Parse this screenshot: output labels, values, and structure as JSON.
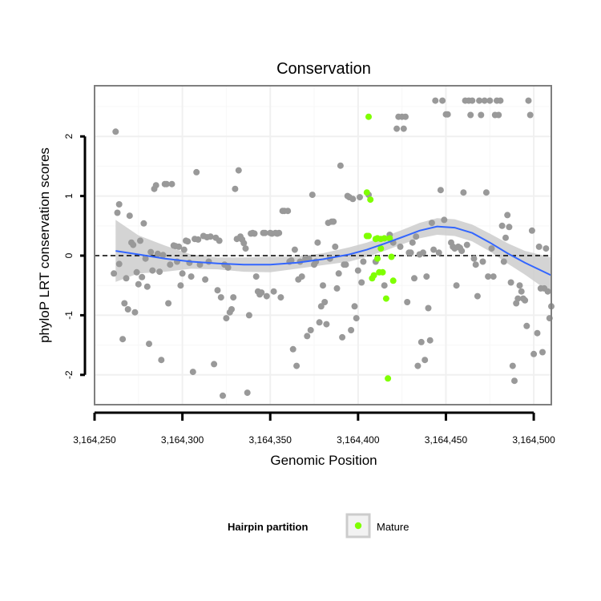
{
  "chart_data": {
    "type": "scatter",
    "title": "Conservation",
    "xlabel": "Genomic Position",
    "ylabel": "phyloP LRT conservation scores",
    "xlim": [
      3164250,
      3164510
    ],
    "ylim": [
      -2.5,
      2.85
    ],
    "xticks": [
      3164250,
      3164300,
      3164350,
      3164400,
      3164450,
      3164500
    ],
    "xtick_labels": [
      "3,164,250",
      "3,164,300",
      "3,164,350",
      "3,164,400",
      "3,164,450",
      "3,164,500"
    ],
    "yticks": [
      -2,
      -1,
      0,
      1,
      2
    ],
    "ytick_labels": [
      "-2",
      "-1",
      "0",
      "1",
      "2"
    ],
    "grid": true,
    "reference_line": {
      "y": 0,
      "style": "dashed"
    },
    "colors": {
      "other": "#999999",
      "mature": "#7fff00",
      "smooth": "#3366ff",
      "band": "#cccccc",
      "panel_border": "#7f7f7f"
    },
    "legend": {
      "title": "Hairpin partition",
      "placement": "bottom",
      "entries": [
        {
          "label": "Mature",
          "color": "#7fff00"
        }
      ]
    },
    "series": [
      {
        "points": [
          [
            3164262,
            2.08
          ],
          [
            3164263,
            0.72
          ],
          [
            3164264,
            0.86
          ],
          [
            3164264,
            -0.14
          ],
          [
            3164261,
            -0.3
          ],
          [
            3164266,
            -1.4
          ],
          [
            3164267,
            -0.8
          ],
          [
            3164268,
            -0.38
          ],
          [
            3164269,
            -0.9
          ],
          [
            3164270,
            0.67
          ],
          [
            3164271,
            0.22
          ],
          [
            3164272,
            0.18
          ],
          [
            3164273,
            -0.95
          ],
          [
            3164274,
            -0.28
          ],
          [
            3164275,
            -0.48
          ],
          [
            3164276,
            0.25
          ],
          [
            3164277,
            -0.36
          ],
          [
            3164278,
            0.54
          ],
          [
            3164279,
            -0.05
          ],
          [
            3164280,
            -0.52
          ],
          [
            3164281,
            -1.48
          ],
          [
            3164282,
            0.06
          ],
          [
            3164283,
            -0.25
          ],
          [
            3164284,
            1.12
          ],
          [
            3164285,
            1.18
          ],
          [
            3164286,
            0.03
          ],
          [
            3164287,
            -0.27
          ],
          [
            3164288,
            -1.75
          ],
          [
            3164289,
            0.01
          ],
          [
            3164290,
            1.2
          ],
          [
            3164291,
            1.2
          ],
          [
            3164292,
            -0.8
          ],
          [
            3164293,
            -0.15
          ],
          [
            3164294,
            1.2
          ],
          [
            3164295,
            0.17
          ],
          [
            3164296,
            0.16
          ],
          [
            3164297,
            -0.1
          ],
          [
            3164298,
            0.15
          ],
          [
            3164299,
            -0.5
          ],
          [
            3164300,
            -0.3
          ],
          [
            3164301,
            0.1
          ],
          [
            3164302,
            0.25
          ],
          [
            3164303,
            0.24
          ],
          [
            3164304,
            -0.12
          ],
          [
            3164305,
            -0.35
          ],
          [
            3164306,
            -1.95
          ],
          [
            3164307,
            0.28
          ],
          [
            3164308,
            1.4
          ],
          [
            3164309,
            0.27
          ],
          [
            3164310,
            -0.15
          ],
          [
            3164312,
            0.33
          ],
          [
            3164313,
            -0.4
          ],
          [
            3164314,
            0.31
          ],
          [
            3164315,
            -0.1
          ],
          [
            3164316,
            0.32
          ],
          [
            3164318,
            -1.82
          ],
          [
            3164319,
            0.3
          ],
          [
            3164320,
            -0.58
          ],
          [
            3164321,
            0.25
          ],
          [
            3164322,
            -0.7
          ],
          [
            3164323,
            -2.35
          ],
          [
            3164324,
            -0.15
          ],
          [
            3164325,
            -1.05
          ],
          [
            3164326,
            -0.2
          ],
          [
            3164327,
            -0.95
          ],
          [
            3164328,
            -0.9
          ],
          [
            3164329,
            -0.7
          ],
          [
            3164330,
            1.12
          ],
          [
            3164331,
            0.28
          ],
          [
            3164332,
            1.43
          ],
          [
            3164333,
            0.32
          ],
          [
            3164334,
            0.27
          ],
          [
            3164335,
            0.21
          ],
          [
            3164336,
            0.12
          ],
          [
            3164337,
            -2.3
          ],
          [
            3164338,
            -1.0
          ],
          [
            3164339,
            0.37
          ],
          [
            3164340,
            0.38
          ],
          [
            3164341,
            0.37
          ],
          [
            3164342,
            -0.35
          ],
          [
            3164343,
            -0.6
          ],
          [
            3164344,
            -0.65
          ],
          [
            3164345,
            -0.62
          ],
          [
            3164346,
            0.38
          ],
          [
            3164347,
            0.38
          ],
          [
            3164348,
            -0.68
          ],
          [
            3164350,
            0.38
          ],
          [
            3164351,
            0.37
          ],
          [
            3164352,
            -0.6
          ],
          [
            3164353,
            0.38
          ],
          [
            3164354,
            0.37
          ],
          [
            3164355,
            0.38
          ],
          [
            3164356,
            -0.7
          ],
          [
            3164357,
            0.75
          ],
          [
            3164358,
            0.75
          ],
          [
            3164360,
            0.75
          ],
          [
            3164361,
            -0.1
          ],
          [
            3164362,
            -0.08
          ],
          [
            3164363,
            -1.57
          ],
          [
            3164364,
            0.1
          ],
          [
            3164365,
            -1.85
          ],
          [
            3164366,
            -0.4
          ],
          [
            3164367,
            -0.1
          ],
          [
            3164368,
            -0.35
          ],
          [
            3164370,
            -0.05
          ],
          [
            3164371,
            -1.35
          ],
          [
            3164372,
            -0.05
          ],
          [
            3164373,
            -1.25
          ],
          [
            3164374,
            1.02
          ],
          [
            3164375,
            -0.15
          ],
          [
            3164376,
            -0.1
          ],
          [
            3164377,
            0.22
          ],
          [
            3164378,
            -1.12
          ],
          [
            3164379,
            -0.85
          ],
          [
            3164380,
            -0.5
          ],
          [
            3164381,
            -0.78
          ],
          [
            3164382,
            -1.15
          ],
          [
            3164383,
            0.55
          ],
          [
            3164384,
            -0.05
          ],
          [
            3164385,
            0.57
          ],
          [
            3164386,
            0.57
          ],
          [
            3164387,
            0.15
          ],
          [
            3164388,
            -0.55
          ],
          [
            3164389,
            -0.3
          ],
          [
            3164390,
            1.51
          ],
          [
            3164391,
            -1.37
          ],
          [
            3164392,
            -0.15
          ],
          [
            3164393,
            -0.15
          ],
          [
            3164394,
            1.0
          ],
          [
            3164395,
            0.98
          ],
          [
            3164396,
            -1.25
          ],
          [
            3164397,
            0.95
          ],
          [
            3164398,
            -0.85
          ],
          [
            3164399,
            -1.05
          ],
          [
            3164400,
            -0.25
          ],
          [
            3164401,
            0.98
          ],
          [
            3164402,
            -0.45
          ],
          [
            3164403,
            -0.1
          ],
          [
            3164406,
            1.02
          ],
          [
            3164410,
            -0.1
          ],
          [
            3164415,
            -0.5
          ],
          [
            3164418,
            0.35
          ],
          [
            3164420,
            0.22
          ],
          [
            3164422,
            2.13
          ],
          [
            3164423,
            2.33
          ],
          [
            3164424,
            0.15
          ],
          [
            3164425,
            2.33
          ],
          [
            3164426,
            2.13
          ],
          [
            3164427,
            2.33
          ],
          [
            3164428,
            -0.78
          ],
          [
            3164429,
            0.05
          ],
          [
            3164430,
            0.05
          ],
          [
            3164431,
            0.22
          ],
          [
            3164432,
            -0.38
          ],
          [
            3164433,
            0.32
          ],
          [
            3164434,
            -1.85
          ],
          [
            3164435,
            0.02
          ],
          [
            3164436,
            -1.45
          ],
          [
            3164437,
            0.05
          ],
          [
            3164438,
            -1.75
          ],
          [
            3164439,
            -0.35
          ],
          [
            3164440,
            -0.88
          ],
          [
            3164441,
            -1.42
          ],
          [
            3164442,
            0.55
          ],
          [
            3164443,
            0.1
          ],
          [
            3164444,
            2.6
          ],
          [
            3164446,
            0.05
          ],
          [
            3164447,
            1.1
          ],
          [
            3164448,
            2.6
          ],
          [
            3164449,
            0.6
          ],
          [
            3164450,
            2.37
          ],
          [
            3164451,
            2.37
          ],
          [
            3164453,
            0.22
          ],
          [
            3164454,
            0.15
          ],
          [
            3164455,
            0.12
          ],
          [
            3164456,
            -0.5
          ],
          [
            3164457,
            0.15
          ],
          [
            3164458,
            0.13
          ],
          [
            3164459,
            0.08
          ],
          [
            3164460,
            1.06
          ],
          [
            3164461,
            2.6
          ],
          [
            3164462,
            0.18
          ],
          [
            3164463,
            2.6
          ],
          [
            3164464,
            2.36
          ],
          [
            3164465,
            2.6
          ],
          [
            3164466,
            -0.05
          ],
          [
            3164467,
            -0.15
          ],
          [
            3164468,
            -0.68
          ],
          [
            3164469,
            2.6
          ],
          [
            3164470,
            2.36
          ],
          [
            3164471,
            -0.1
          ],
          [
            3164472,
            2.6
          ],
          [
            3164473,
            1.06
          ],
          [
            3164474,
            -0.35
          ],
          [
            3164475,
            2.6
          ],
          [
            3164476,
            0.12
          ],
          [
            3164477,
            -0.35
          ],
          [
            3164478,
            2.36
          ],
          [
            3164479,
            2.6
          ],
          [
            3164480,
            2.36
          ],
          [
            3164481,
            2.6
          ],
          [
            3164482,
            0.5
          ],
          [
            3164483,
            -0.1
          ],
          [
            3164484,
            0.3
          ],
          [
            3164485,
            0.68
          ],
          [
            3164486,
            0.48
          ],
          [
            3164487,
            -0.45
          ],
          [
            3164488,
            -1.85
          ],
          [
            3164489,
            -2.1
          ],
          [
            3164490,
            -0.8
          ],
          [
            3164491,
            -0.72
          ],
          [
            3164492,
            -0.5
          ],
          [
            3164493,
            -0.6
          ],
          [
            3164494,
            -0.72
          ],
          [
            3164495,
            -0.75
          ],
          [
            3164496,
            -1.18
          ],
          [
            3164497,
            2.6
          ],
          [
            3164498,
            2.36
          ],
          [
            3164499,
            0.42
          ],
          [
            3164500,
            -1.65
          ],
          [
            3164502,
            -1.3
          ],
          [
            3164503,
            0.15
          ],
          [
            3164504,
            -0.55
          ],
          [
            3164505,
            -1.62
          ],
          [
            3164506,
            -0.55
          ],
          [
            3164507,
            0.12
          ],
          [
            3164508,
            -0.6
          ],
          [
            3164509,
            -1.05
          ],
          [
            3164510,
            -0.85
          ]
        ]
      },
      {
        "name": "Mature",
        "points": [
          [
            3164406,
            2.33
          ],
          [
            3164405,
            1.06
          ],
          [
            3164407,
            0.94
          ],
          [
            3164405,
            0.33
          ],
          [
            3164406,
            0.33
          ],
          [
            3164408,
            -0.38
          ],
          [
            3164409,
            -0.33
          ],
          [
            3164410,
            0.28
          ],
          [
            3164411,
            -0.05
          ],
          [
            3164411,
            0.29
          ],
          [
            3164412,
            -0.28
          ],
          [
            3164413,
            0.28
          ],
          [
            3164413,
            0.12
          ],
          [
            3164414,
            -0.28
          ],
          [
            3164415,
            0.29
          ],
          [
            3164416,
            -0.72
          ],
          [
            3164417,
            -2.06
          ],
          [
            3164418,
            0.29
          ],
          [
            3164419,
            -0.02
          ],
          [
            3164420,
            -0.42
          ]
        ]
      }
    ],
    "smooth": {
      "points": [
        [
          3164262,
          0.08
        ],
        [
          3164275,
          0.02
        ],
        [
          3164290,
          -0.05
        ],
        [
          3164305,
          -0.1
        ],
        [
          3164320,
          -0.13
        ],
        [
          3164335,
          -0.15
        ],
        [
          3164350,
          -0.15
        ],
        [
          3164365,
          -0.12
        ],
        [
          3164380,
          -0.06
        ],
        [
          3164395,
          0.02
        ],
        [
          3164405,
          0.1
        ],
        [
          3164415,
          0.2
        ],
        [
          3164425,
          0.31
        ],
        [
          3164435,
          0.42
        ],
        [
          3164445,
          0.49
        ],
        [
          3164455,
          0.47
        ],
        [
          3164465,
          0.38
        ],
        [
          3164475,
          0.22
        ],
        [
          3164485,
          0.04
        ],
        [
          3164495,
          -0.12
        ],
        [
          3164510,
          -0.33
        ]
      ],
      "band": [
        0.52,
        0.32,
        0.22,
        0.12,
        0.1,
        0.12,
        0.13,
        0.1,
        0.1,
        0.12,
        0.12,
        0.12,
        0.12,
        0.13,
        0.14,
        0.14,
        0.14,
        0.15,
        0.17,
        0.2,
        0.3
      ]
    }
  }
}
